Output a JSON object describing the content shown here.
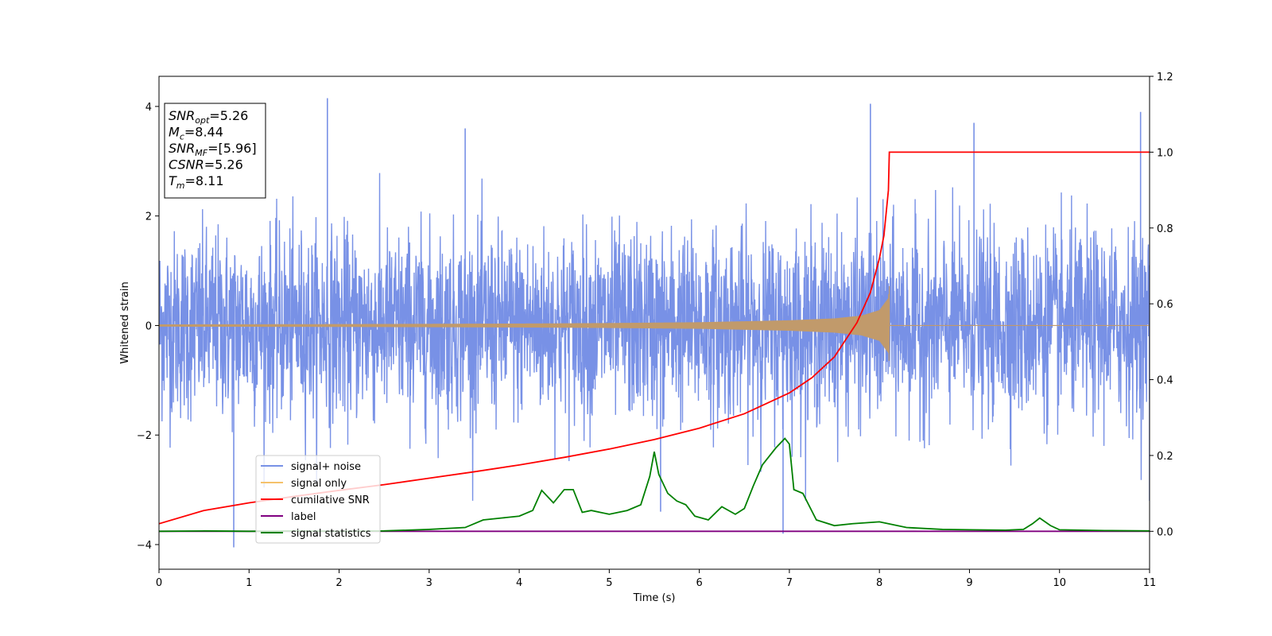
{
  "chart_data": {
    "type": "line",
    "xlabel": "Time (s)",
    "ylabel": "Whitened strain",
    "xlim": [
      0,
      11
    ],
    "ylim_left": [
      -4.45,
      4.55
    ],
    "ylim_right": [
      -0.1,
      1.2
    ],
    "x_ticks": [
      "0",
      "1",
      "2",
      "3",
      "4",
      "5",
      "6",
      "7",
      "8",
      "9",
      "10",
      "11"
    ],
    "y_left_ticks": [
      "4",
      "2",
      "0",
      "−2",
      "−4"
    ],
    "y_right_ticks": [
      "1.2",
      "1.0",
      "0.8",
      "0.6",
      "0.4",
      "0.2",
      "0.0"
    ],
    "info_box": [
      {
        "main": "SNR",
        "sub": "opt",
        "value": "=5.26"
      },
      {
        "main": "M",
        "sub": "c",
        "value": "=8.44"
      },
      {
        "main": "SNR",
        "sub": "MF",
        "value": "=[5.96]"
      },
      {
        "main": "CSNR",
        "sub": "",
        "value": "=5.26"
      },
      {
        "main": "T",
        "sub": "m",
        "value": "=8.11"
      }
    ],
    "legend": {
      "placement": "lower-left",
      "entries": [
        {
          "label": "signal+ noise",
          "color": "#7891e6"
        },
        {
          "label": "signal only",
          "color": "#f5c26b"
        },
        {
          "label": "cumilative SNR",
          "color": "#ff0000"
        },
        {
          "label": "label",
          "color": "#800080"
        },
        {
          "label": "signal statistics",
          "color": "#008000"
        }
      ]
    },
    "series": [
      {
        "name": "signal+ noise",
        "axis": "left",
        "description": "white noise, approx std 0.85, spikes up to ~4.2",
        "approx_peaks": [
          [
            0.83,
            -4.05
          ],
          [
            1.87,
            4.15
          ],
          [
            7.9,
            4.05
          ],
          [
            6.93,
            -3.8
          ],
          [
            3.4,
            3.6
          ],
          [
            9.05,
            3.7
          ],
          [
            5.57,
            -3.4
          ],
          [
            10.9,
            3.9
          ],
          [
            11,
            -3.2
          ]
        ]
      },
      {
        "name": "signal only",
        "axis": "left",
        "description": "chirp ending at merger time, envelope amplitude",
        "x": [
          0,
          1,
          2,
          3,
          4,
          5,
          6,
          7,
          7.5,
          7.8,
          8.0,
          8.1,
          8.11
        ],
        "amplitude": [
          0.02,
          0.022,
          0.025,
          0.03,
          0.035,
          0.045,
          0.06,
          0.095,
          0.13,
          0.18,
          0.28,
          0.5,
          0.72
        ],
        "merger_time": 8.11
      },
      {
        "name": "cumilative SNR",
        "axis": "right",
        "x": [
          0,
          0.5,
          1,
          1.5,
          2,
          2.5,
          3,
          3.5,
          4,
          4.5,
          5,
          5.5,
          6,
          6.5,
          7,
          7.25,
          7.5,
          7.75,
          7.9,
          8.0,
          8.05,
          8.1,
          8.11,
          8.5,
          9,
          10,
          11
        ],
        "values": [
          0.02,
          0.055,
          0.075,
          0.092,
          0.108,
          0.123,
          0.14,
          0.157,
          0.175,
          0.195,
          0.217,
          0.242,
          0.272,
          0.31,
          0.365,
          0.405,
          0.46,
          0.55,
          0.63,
          0.72,
          0.78,
          0.9,
          1.0,
          1.0,
          1.0,
          1.0,
          1.0
        ]
      },
      {
        "name": "label",
        "axis": "right",
        "x": [
          0,
          11
        ],
        "values": [
          0.0,
          0.0
        ]
      },
      {
        "name": "signal statistics",
        "axis": "right",
        "x": [
          0,
          0.5,
          1,
          1.5,
          2,
          2.5,
          3,
          3.4,
          3.6,
          3.8,
          4.0,
          4.15,
          4.25,
          4.38,
          4.5,
          4.6,
          4.7,
          4.8,
          4.9,
          5.0,
          5.2,
          5.35,
          5.45,
          5.5,
          5.55,
          5.65,
          5.75,
          5.85,
          5.95,
          6.1,
          6.25,
          6.4,
          6.5,
          6.6,
          6.7,
          6.85,
          6.95,
          7.0,
          7.05,
          7.15,
          7.3,
          7.5,
          7.7,
          8.0,
          8.3,
          8.7,
          9.0,
          9.4,
          9.6,
          9.7,
          9.78,
          9.9,
          10.0,
          10.5,
          11
        ],
        "values": [
          0.0,
          0.001,
          0.0,
          0.001,
          0.0,
          0.001,
          0.005,
          0.01,
          0.03,
          0.035,
          0.04,
          0.055,
          0.108,
          0.075,
          0.11,
          0.11,
          0.05,
          0.055,
          0.05,
          0.045,
          0.055,
          0.07,
          0.145,
          0.21,
          0.15,
          0.1,
          0.08,
          0.07,
          0.04,
          0.03,
          0.065,
          0.045,
          0.06,
          0.12,
          0.175,
          0.22,
          0.245,
          0.23,
          0.11,
          0.1,
          0.03,
          0.015,
          0.02,
          0.025,
          0.01,
          0.005,
          0.004,
          0.003,
          0.005,
          0.02,
          0.035,
          0.015,
          0.004,
          0.002,
          0.001
        ]
      }
    ]
  }
}
